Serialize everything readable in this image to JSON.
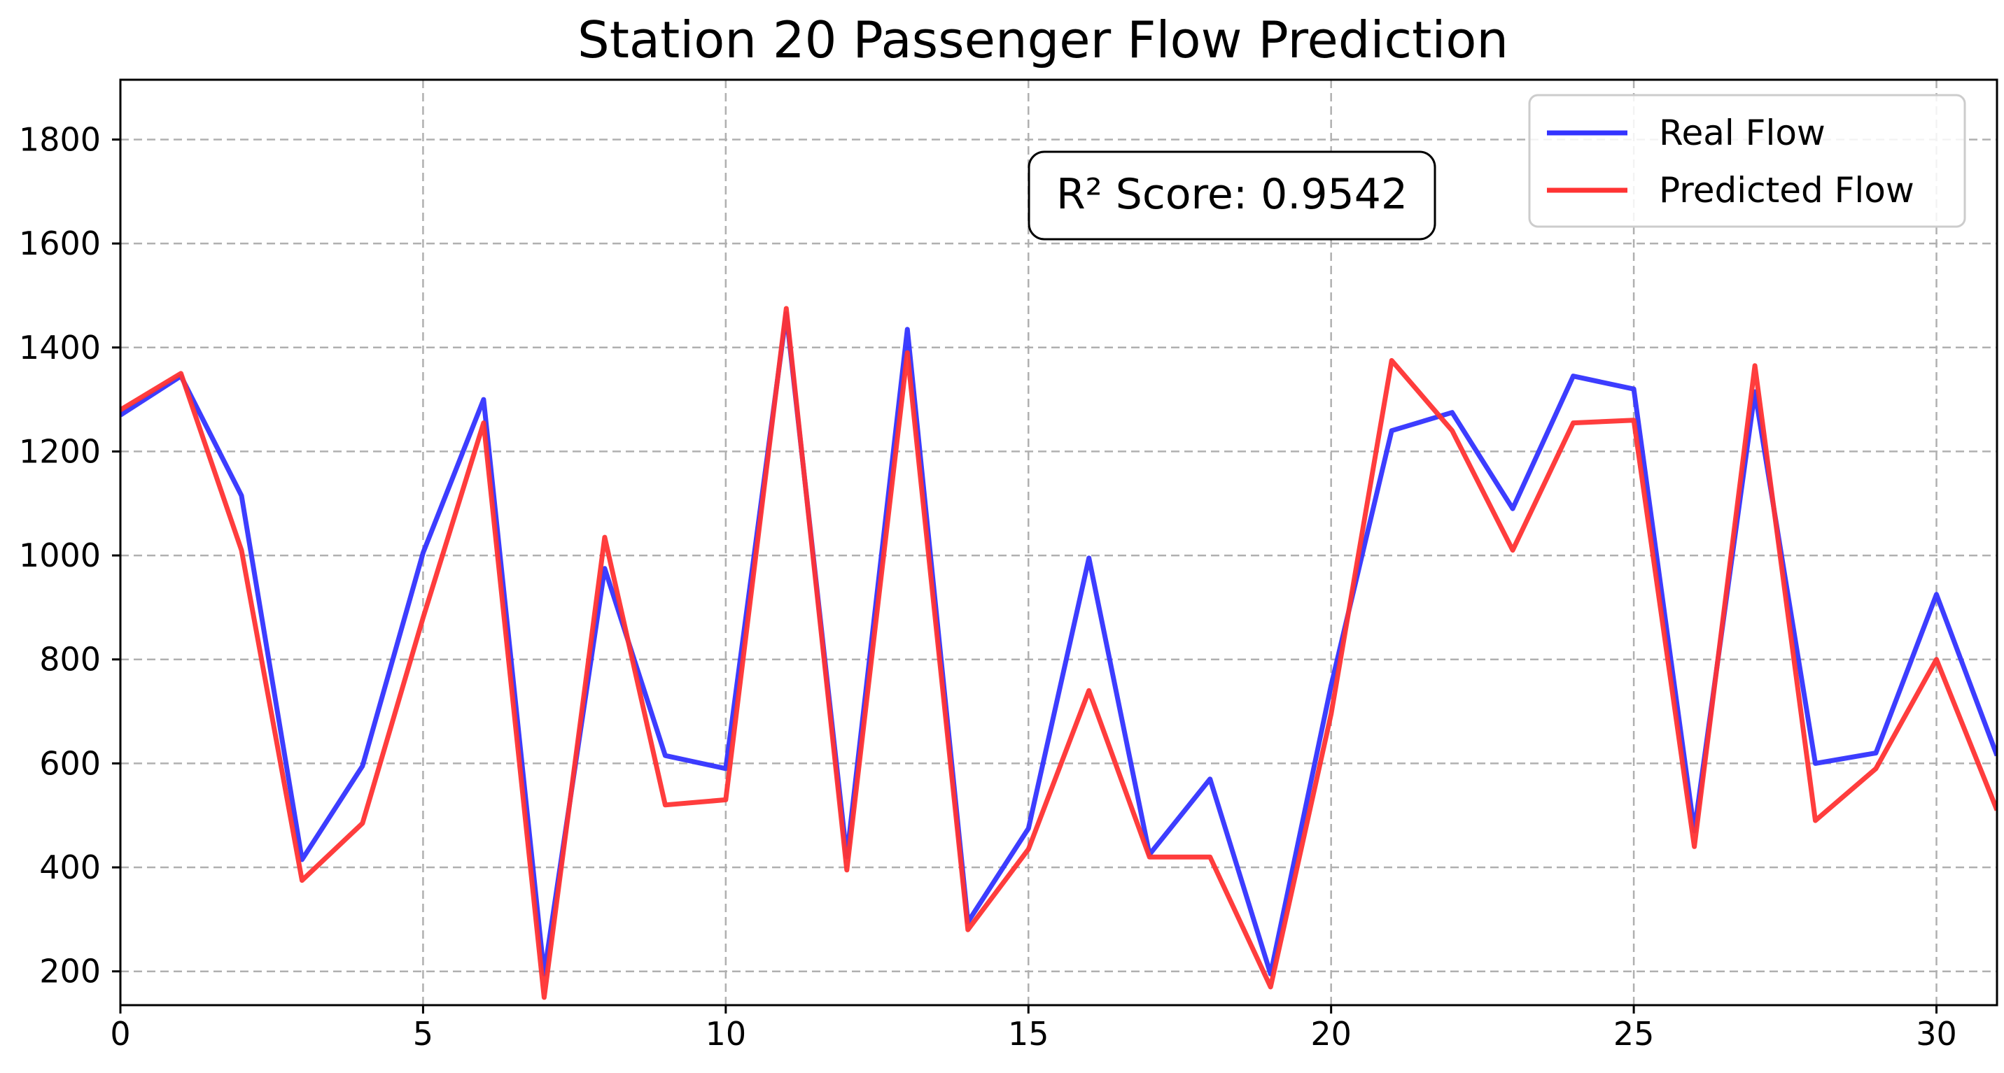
{
  "chart_data": {
    "type": "line",
    "title": "Station 20 Passenger Flow Prediction",
    "xlabel": "",
    "ylabel": "",
    "xlim": [
      0,
      31
    ],
    "ylim": [
      135,
      1915
    ],
    "x_ticks": [
      0,
      5,
      10,
      15,
      20,
      25,
      30
    ],
    "y_ticks": [
      200,
      400,
      600,
      800,
      1000,
      1200,
      1400,
      1600,
      1800
    ],
    "grid": true,
    "legend_position": "top-right",
    "annotation": "R² Score: 0.9542",
    "x": [
      0,
      1,
      2,
      3,
      4,
      5,
      6,
      7,
      8,
      9,
      10,
      11,
      12,
      13,
      14,
      15,
      16,
      17,
      18,
      19,
      20,
      21,
      22,
      23,
      24,
      25,
      26,
      27,
      28,
      29,
      30,
      31
    ],
    "series": [
      {
        "name": "Real Flow",
        "color": "#3333ff",
        "values": [
          1270,
          1345,
          1115,
          415,
          595,
          1005,
          1300,
          195,
          975,
          615,
          590,
          1465,
          420,
          1435,
          295,
          475,
          995,
          425,
          570,
          195,
          750,
          1240,
          1275,
          1090,
          1345,
          1320,
          470,
          1315,
          600,
          620,
          925,
          615
        ]
      },
      {
        "name": "Predicted Flow",
        "color": "#ff3333",
        "values": [
          1280,
          1350,
          1010,
          375,
          485,
          880,
          1255,
          150,
          1035,
          520,
          530,
          1475,
          395,
          1390,
          280,
          435,
          740,
          420,
          420,
          170,
          695,
          1375,
          1240,
          1010,
          1255,
          1260,
          440,
          1365,
          490,
          590,
          800,
          510
        ]
      }
    ]
  }
}
